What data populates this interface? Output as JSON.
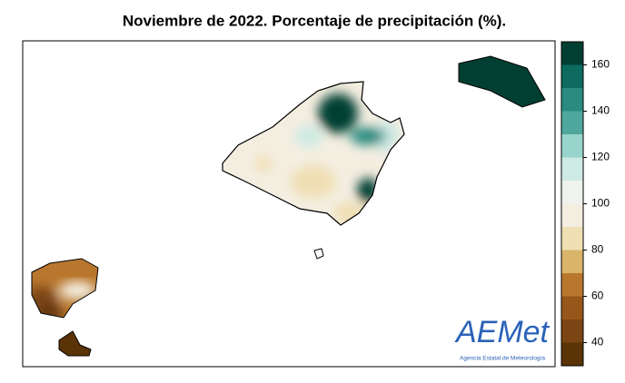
{
  "map_title": "Noviembre de 2022. Porcentaje de precipitación (%).",
  "colorbar": {
    "bounds": [
      30,
      40,
      50,
      60,
      70,
      80,
      90,
      100,
      110,
      120,
      130,
      140,
      150,
      160,
      170
    ],
    "colors": [
      "#5a3307",
      "#7a4512",
      "#97561a",
      "#b9772e",
      "#d9b46a",
      "#f0dfb4",
      "#f4eee1",
      "#eef3f0",
      "#cdeae4",
      "#98d4cb",
      "#4fa79d",
      "#2b8b80",
      "#0c6a5e",
      "#013f33"
    ],
    "ticks": [
      40,
      60,
      80,
      100,
      120,
      140,
      160
    ]
  },
  "logo": {
    "text": "AEMet",
    "subtitle": "Agencia Estatal de Meteorología"
  }
}
